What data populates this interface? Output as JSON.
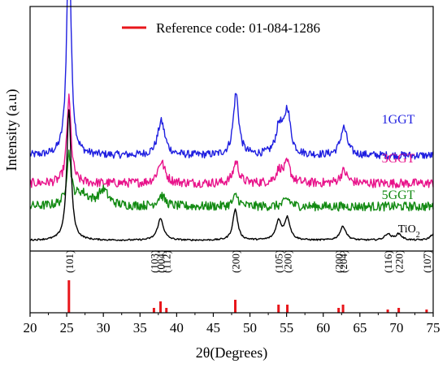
{
  "chart_data": {
    "type": "line",
    "xlabel": "2θ(Degrees)",
    "ylabel": "Intensity (a.u)",
    "xlim": [
      20,
      75
    ],
    "x_ticks": [
      20,
      25,
      30,
      35,
      40,
      45,
      50,
      55,
      60,
      65,
      70,
      75
    ],
    "y_ticks_shown": false,
    "grid": false,
    "legend": {
      "position": "top-center",
      "entries": [
        {
          "label": "Reference code: 01-084-1286",
          "color": "#e8161b"
        }
      ]
    },
    "series": [
      {
        "name": "1GGT",
        "color": "#1f1fe0",
        "label_x": 72.5,
        "baseline": 0.55,
        "noise": 0.025,
        "peaks": [
          {
            "x": 25.3,
            "height": 1.45,
            "width": 0.35
          },
          {
            "x": 37.9,
            "height": 0.22,
            "width": 0.6
          },
          {
            "x": 48.1,
            "height": 0.4,
            "width": 0.45
          },
          {
            "x": 54.0,
            "height": 0.18,
            "width": 0.55
          },
          {
            "x": 55.1,
            "height": 0.28,
            "width": 0.5
          },
          {
            "x": 62.8,
            "height": 0.18,
            "width": 0.55
          }
        ]
      },
      {
        "name": "3GGT",
        "color": "#e8128a",
        "label_x": 72.5,
        "baseline": 0.37,
        "noise": 0.03,
        "peaks": [
          {
            "x": 25.3,
            "height": 0.55,
            "width": 0.35
          },
          {
            "x": 37.9,
            "height": 0.14,
            "width": 0.6
          },
          {
            "x": 48.1,
            "height": 0.14,
            "width": 0.45
          },
          {
            "x": 54.0,
            "height": 0.08,
            "width": 0.55
          },
          {
            "x": 55.1,
            "height": 0.12,
            "width": 0.5
          },
          {
            "x": 62.8,
            "height": 0.08,
            "width": 0.55
          }
        ]
      },
      {
        "name": "5GGT",
        "color": "#128a12",
        "label_x": 72.5,
        "baseline": 0.22,
        "noise": 0.03,
        "peaks": [
          {
            "x": 25.3,
            "height": 0.32,
            "width": 0.35
          },
          {
            "x": 27.0,
            "height": 0.08,
            "width": 1.2
          },
          {
            "x": 30.0,
            "height": 0.1,
            "width": 0.8
          },
          {
            "x": 37.9,
            "height": 0.07,
            "width": 0.6
          },
          {
            "x": 48.1,
            "height": 0.07,
            "width": 0.45
          },
          {
            "x": 55.1,
            "height": 0.05,
            "width": 0.5
          }
        ]
      },
      {
        "name": "TiO",
        "name_sub": "2",
        "color": "#000000",
        "label_x": 73.2,
        "baseline": 0.0,
        "noise": 0.005,
        "peaks": [
          {
            "x": 25.3,
            "height": 0.85,
            "width": 0.35
          },
          {
            "x": 37.8,
            "height": 0.14,
            "width": 0.5
          },
          {
            "x": 48.0,
            "height": 0.2,
            "width": 0.4
          },
          {
            "x": 53.9,
            "height": 0.12,
            "width": 0.45
          },
          {
            "x": 55.1,
            "height": 0.14,
            "width": 0.45
          },
          {
            "x": 62.7,
            "height": 0.09,
            "width": 0.5
          },
          {
            "x": 68.8,
            "height": 0.04,
            "width": 0.5
          },
          {
            "x": 70.3,
            "height": 0.04,
            "width": 0.5
          },
          {
            "x": 75.0,
            "height": 0.04,
            "width": 0.5
          }
        ]
      }
    ],
    "reference_lines": [
      {
        "x": 25.3,
        "height": 1.0,
        "label": "(101)"
      },
      {
        "x": 36.9,
        "height": 0.15,
        "label": "(103)"
      },
      {
        "x": 37.8,
        "height": 0.35,
        "label": "(004)"
      },
      {
        "x": 38.6,
        "height": 0.15,
        "label": "(112)"
      },
      {
        "x": 48.0,
        "height": 0.4,
        "label": "(200)"
      },
      {
        "x": 53.9,
        "height": 0.25,
        "label": "(105)"
      },
      {
        "x": 55.1,
        "height": 0.25,
        "label": "(200)"
      },
      {
        "x": 62.1,
        "height": 0.15,
        "label": "(200)"
      },
      {
        "x": 62.7,
        "height": 0.25,
        "label": "(204)"
      },
      {
        "x": 68.8,
        "height": 0.1,
        "label": "(116)"
      },
      {
        "x": 70.3,
        "height": 0.15,
        "label": "(220)"
      },
      {
        "x": 74.1,
        "height": 0.1,
        "label": "(107)"
      }
    ],
    "reference_color": "#e8161b"
  }
}
